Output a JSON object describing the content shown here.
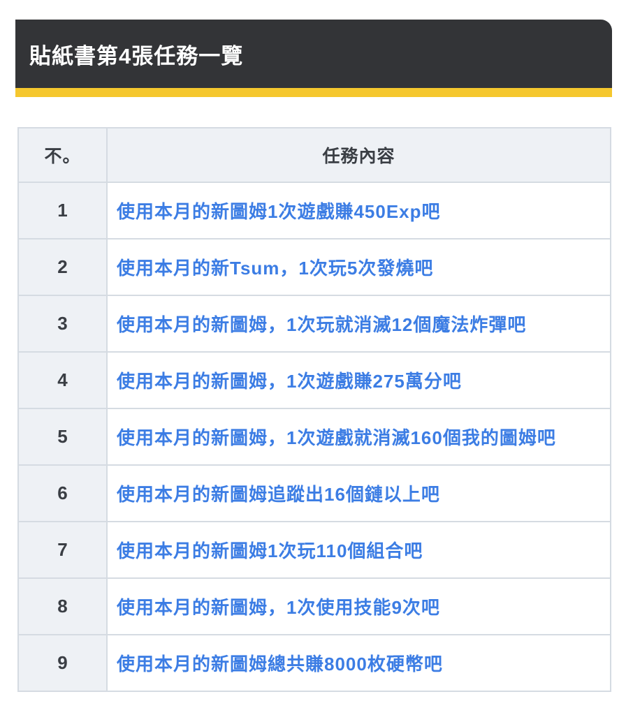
{
  "header": {
    "title": "貼紙書第4張任務一覽",
    "bg_color": "#333437",
    "accent_color": "#f5c72e",
    "text_color": "#ffffff"
  },
  "table": {
    "columns": {
      "no": "不。",
      "content": "任務內容"
    },
    "link_color": "#3c7de4",
    "header_bg_color": "#eef1f5",
    "border_color": "#d5dbe2",
    "rows": [
      {
        "no": "1",
        "task": "使用本月的新圖姆1次遊戲賺450Exp吧"
      },
      {
        "no": "2",
        "task": "使用本月的新Tsum，1次玩5次發燒吧"
      },
      {
        "no": "3",
        "task": "使用本月的新圖姆，1次玩就消滅12個魔法炸彈吧"
      },
      {
        "no": "4",
        "task": "使用本月的新圖姆，1次遊戲賺275萬分吧"
      },
      {
        "no": "5",
        "task": "使用本月的新圖姆，1次遊戲就消滅160個我的圖姆吧"
      },
      {
        "no": "6",
        "task": "使用本月的新圖姆追蹤出16個鏈以上吧"
      },
      {
        "no": "7",
        "task": "使用本月的新圖姆1次玩110個組合吧"
      },
      {
        "no": "8",
        "task": "使用本月的新圖姆，1次使用技能9次吧"
      },
      {
        "no": "9",
        "task": "使用本月的新圖姆總共賺8000枚硬幣吧"
      }
    ]
  }
}
